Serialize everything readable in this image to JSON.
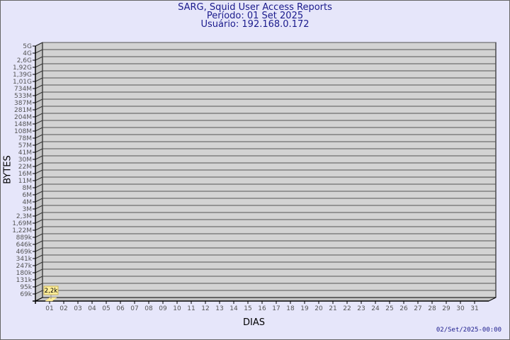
{
  "header": {
    "title": "SARG, Squid User Access Reports",
    "period": "Período: 01 Set 2025",
    "user": "Usuário: 192.168.0.172"
  },
  "footer": {
    "generated": "02/Set/2025-00:00"
  },
  "colors": {
    "background": "#e6e6fa",
    "plot": "#d3d3d3",
    "bar": "#ffee99",
    "title": "#1a1a8c"
  },
  "chart_data": {
    "type": "bar",
    "xlabel": "DIAS",
    "ylabel": "BYTES",
    "yscale": "log",
    "yticks": [
      "5G",
      "4G",
      "2,6G",
      "1,92G",
      "1,39G",
      "1,01G",
      "734M",
      "533M",
      "387M",
      "281M",
      "204M",
      "148M",
      "108M",
      "78M",
      "57M",
      "41M",
      "30M",
      "22M",
      "16M",
      "11M",
      "8M",
      "6M",
      "4M",
      "3M",
      "2,3M",
      "1,69M",
      "1,22M",
      "889k",
      "646k",
      "469k",
      "341k",
      "247k",
      "180k",
      "131k",
      "95k",
      "69k"
    ],
    "categories": [
      "01",
      "02",
      "03",
      "04",
      "05",
      "06",
      "07",
      "08",
      "09",
      "10",
      "11",
      "12",
      "13",
      "14",
      "15",
      "16",
      "17",
      "18",
      "19",
      "20",
      "21",
      "22",
      "23",
      "24",
      "25",
      "26",
      "27",
      "28",
      "29",
      "30",
      "31"
    ],
    "values": [
      2200,
      null,
      null,
      null,
      null,
      null,
      null,
      null,
      null,
      null,
      null,
      null,
      null,
      null,
      null,
      null,
      null,
      null,
      null,
      null,
      null,
      null,
      null,
      null,
      null,
      null,
      null,
      null,
      null,
      null,
      null
    ],
    "data_labels": {
      "01": "2,2k"
    },
    "grid": true
  }
}
